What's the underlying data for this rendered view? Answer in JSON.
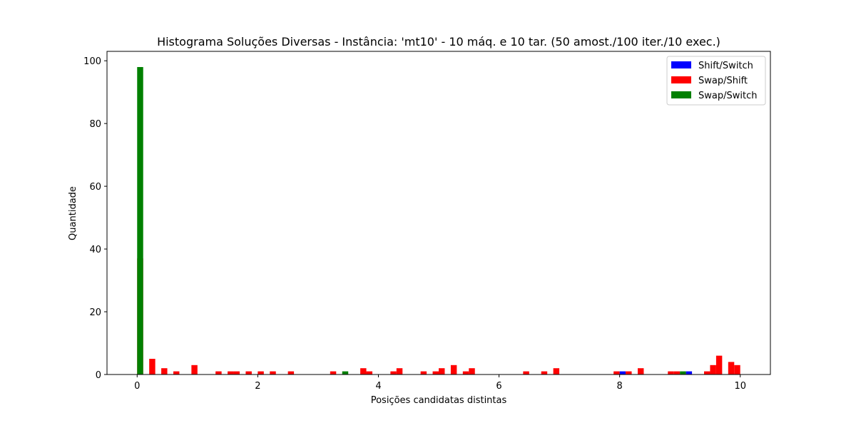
{
  "chart_data": {
    "type": "bar",
    "title": "Histograma Soluções Diversas - Instância: 'mt10' - 10 máq. e 10 tar. (50 amost./100 iter./10 exec.)",
    "xlabel": "Posições candidatas distintas",
    "ylabel": "Quantidade",
    "xlim": [
      -0.5,
      10.5
    ],
    "ylim": [
      0,
      103
    ],
    "xticks": [
      0,
      2,
      4,
      6,
      8,
      10
    ],
    "yticks": [
      0,
      20,
      40,
      60,
      80,
      100
    ],
    "grid": false,
    "legend_position": "top-right",
    "bar_width": 0.1,
    "series": [
      {
        "name": "Shift/Switch",
        "color": "#0000ff",
        "points": [
          {
            "x": 8.05,
            "y": 1
          },
          {
            "x": 9.15,
            "y": 1
          }
        ]
      },
      {
        "name": "Swap/Shift",
        "color": "#ff0000",
        "points": [
          {
            "x": 0.05,
            "y": 37
          },
          {
            "x": 0.25,
            "y": 5
          },
          {
            "x": 0.45,
            "y": 2
          },
          {
            "x": 0.65,
            "y": 1
          },
          {
            "x": 0.95,
            "y": 3
          },
          {
            "x": 1.35,
            "y": 1
          },
          {
            "x": 1.55,
            "y": 1
          },
          {
            "x": 1.65,
            "y": 1
          },
          {
            "x": 1.85,
            "y": 1
          },
          {
            "x": 2.05,
            "y": 1
          },
          {
            "x": 2.25,
            "y": 1
          },
          {
            "x": 2.55,
            "y": 1
          },
          {
            "x": 3.25,
            "y": 1
          },
          {
            "x": 3.75,
            "y": 2
          },
          {
            "x": 3.85,
            "y": 1
          },
          {
            "x": 4.25,
            "y": 1
          },
          {
            "x": 4.35,
            "y": 2
          },
          {
            "x": 4.75,
            "y": 1
          },
          {
            "x": 4.95,
            "y": 1
          },
          {
            "x": 5.05,
            "y": 2
          },
          {
            "x": 5.25,
            "y": 3
          },
          {
            "x": 5.45,
            "y": 1
          },
          {
            "x": 5.55,
            "y": 2
          },
          {
            "x": 6.45,
            "y": 1
          },
          {
            "x": 6.75,
            "y": 1
          },
          {
            "x": 6.95,
            "y": 2
          },
          {
            "x": 7.95,
            "y": 1
          },
          {
            "x": 8.15,
            "y": 1
          },
          {
            "x": 8.35,
            "y": 2
          },
          {
            "x": 8.85,
            "y": 1
          },
          {
            "x": 8.95,
            "y": 1
          },
          {
            "x": 9.45,
            "y": 1
          },
          {
            "x": 9.55,
            "y": 3
          },
          {
            "x": 9.65,
            "y": 6
          },
          {
            "x": 9.85,
            "y": 4
          },
          {
            "x": 9.95,
            "y": 3
          }
        ]
      },
      {
        "name": "Swap/Switch",
        "color": "#008000",
        "points": [
          {
            "x": 0.05,
            "y": 98
          },
          {
            "x": 3.45,
            "y": 1
          },
          {
            "x": 9.05,
            "y": 1
          }
        ]
      }
    ]
  }
}
